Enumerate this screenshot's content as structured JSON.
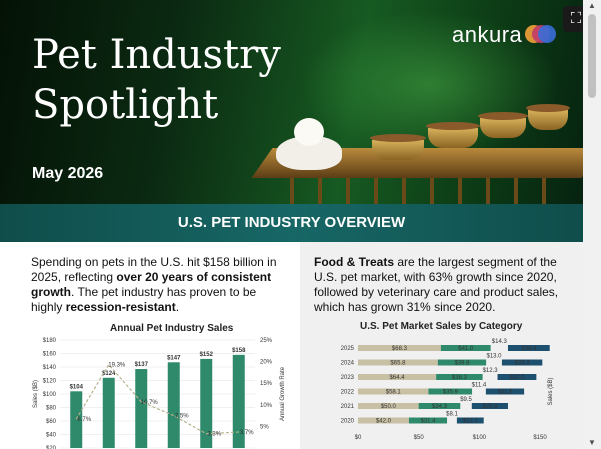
{
  "header": {
    "title_line1": "Pet Industry",
    "title_line2": "Spotlight",
    "date": "May 2026",
    "logo_text": "ankura",
    "expand_icon": "expand-icon"
  },
  "banner": {
    "title": "U.S. PET INDUSTRY OVERVIEW"
  },
  "left": {
    "p1": "Spending on pets in the U.S. hit $158 billion in 2025, reflecting ",
    "p1_bold": "over 20 years of consistent growth",
    "p2": ". The pet industry has proven to be highly ",
    "p2_bold": "recession-resistant",
    "p3": "."
  },
  "right": {
    "p_bold": "Food & Treats",
    "p_rest": " are the largest segment of the U.S. pet market, with 63% growth since 2020, followed by veterinary care and product sales, which has grown 31% since 2020."
  },
  "chart_data": [
    {
      "type": "bar",
      "title": "Annual Pet Industry Sales",
      "ylabel": "Sales ($B)",
      "y2label": "Annual Growth Rate",
      "ylim": [
        20,
        180
      ],
      "yticks": [
        "$180",
        "$160",
        "$140",
        "$120",
        "$100",
        "$80",
        "$60",
        "$40",
        "$20"
      ],
      "y2ticks": [
        "25%",
        "20%",
        "15%",
        "10%",
        "5%"
      ],
      "values": [
        104,
        124,
        137,
        147,
        152,
        158
      ],
      "value_labels": [
        "$104",
        "$124",
        "$137",
        "$147",
        "$152",
        "$158"
      ],
      "growth_labels": [
        "6.7%",
        "19.3%",
        "10.7%",
        "7.5%",
        "3.3%",
        "3.7%"
      ],
      "growth": [
        6.7,
        19.3,
        10.7,
        7.5,
        3.3,
        3.7
      ],
      "bar_color": "#2f8a6c",
      "line_color": "#b8b08a"
    },
    {
      "type": "bar",
      "title": "U.S. Pet Market Sales by Category",
      "ylabel": "Sales ($B)",
      "categories": [
        "2025",
        "2024",
        "2023",
        "2022",
        "2021",
        "2020"
      ],
      "xticks": [
        "$0",
        "$50",
        "$100",
        "$150"
      ],
      "xlim": [
        0,
        150
      ],
      "series": [
        {
          "values": [
            68.3,
            65.8,
            64.4,
            58.1,
            50.0,
            42.0
          ],
          "labels": [
            "$68.3",
            "$65.8",
            "$64.4",
            "$58.1",
            "$50.0",
            "$42.0"
          ],
          "color": "#c8c0a4"
        },
        {
          "values": [
            41.0,
            39.8,
            38.3,
            35.9,
            34.3,
            31.4
          ],
          "labels": [
            "$41.0",
            "$39.8",
            "$38.3",
            "$35.9",
            "$34.3",
            "$31.4"
          ],
          "color": "#2f8a6c"
        },
        {
          "values": [
            14.3,
            13.0,
            12.3,
            11.4,
            9.5,
            8.1
          ],
          "labels": [
            "$14.3",
            "$13.0",
            "$12.3",
            "$11.4",
            "$9.5",
            "$8.1"
          ],
          "color": "#ffffff"
        },
        {
          "values": [
            34.4,
            33.3,
            32.0,
            31.5,
            29.8,
            22.1
          ],
          "labels": [
            "$34.4",
            "$33.3",
            "$32.0",
            "$31.5",
            "$29.8",
            "$22.1"
          ],
          "color": "#1d4f6e"
        }
      ]
    }
  ]
}
